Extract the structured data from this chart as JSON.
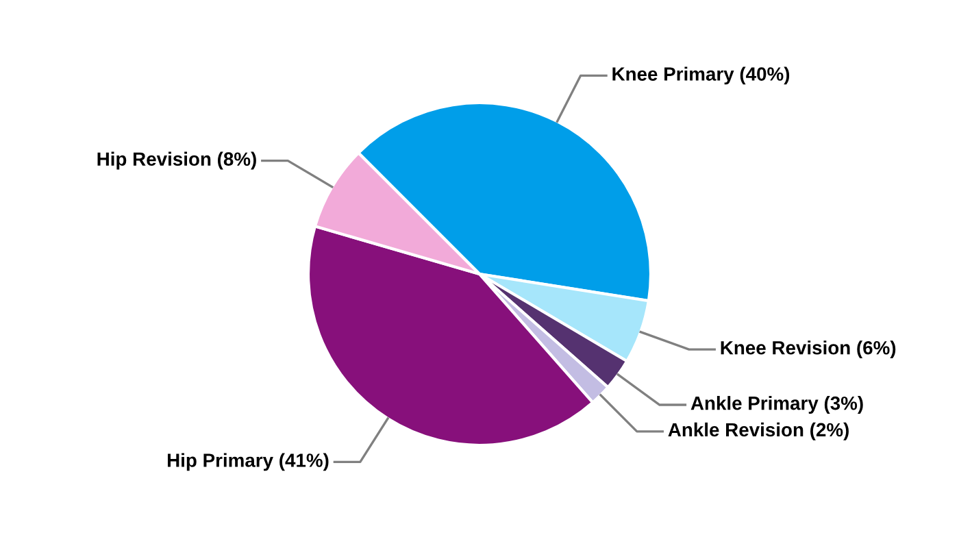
{
  "chart_data": {
    "type": "pie",
    "categories": [
      "Knee Primary (40%)",
      "Knee Revision (6%)",
      "Ankle Primary (3%)",
      "Ankle Revision (2%)",
      "Hip Primary (41%)",
      "Hip Revision (8%)"
    ],
    "values": [
      40,
      6,
      3,
      2,
      41,
      8
    ],
    "colors": [
      "#009ee9",
      "#a6e6fb",
      "#553270",
      "#c3bde3",
      "#87107b",
      "#f2aad9"
    ],
    "legend": false
  }
}
